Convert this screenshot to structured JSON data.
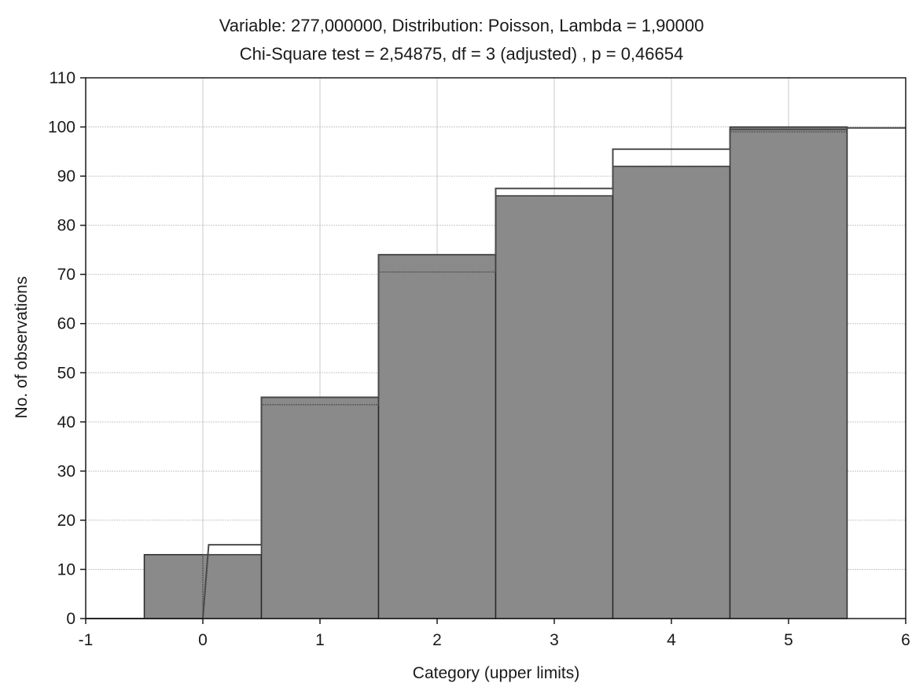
{
  "chart_data": {
    "type": "bar",
    "title_line1": "Variable: 277,000000, Distribution: Poisson, Lambda = 1,90000",
    "title_line2": "Chi-Square test = 2,54875, df = 3 (adjusted) , p = 0,46654",
    "xlabel": "Category (upper limits)",
    "ylabel": "No. of observations",
    "xlim": [
      -1,
      6
    ],
    "ylim": [
      0,
      110
    ],
    "x_ticks": [
      -1,
      0,
      1,
      2,
      3,
      4,
      5,
      6
    ],
    "y_ticks": [
      0,
      10,
      20,
      30,
      40,
      50,
      60,
      70,
      80,
      90,
      100,
      110
    ],
    "grid": true,
    "observed": {
      "categories": [
        0,
        1,
        2,
        3,
        4,
        5
      ],
      "values": [
        13,
        45,
        74,
        86,
        92,
        100
      ]
    },
    "expected_upper": {
      "x": [
        -1,
        0,
        0.05,
        0.5,
        0.5,
        1.5,
        1.5,
        2.5,
        2.5,
        3.5,
        3.5,
        4.5,
        4.5,
        5.5,
        5.5,
        6
      ],
      "y": [
        0,
        0,
        15,
        15,
        45,
        45,
        74,
        74,
        87.5,
        87.5,
        95.5,
        95.5,
        99.5,
        99.5,
        99.8,
        99.8
      ]
    },
    "expected_lower": {
      "x": [
        0,
        0,
        0.5,
        0.5,
        1.5,
        1.5,
        2.5,
        2.5,
        3.5,
        3.5,
        4.5,
        4.5,
        5.5
      ],
      "y": [
        0,
        13,
        13,
        43.5,
        43.5,
        70.5,
        70.5,
        86,
        86,
        92,
        92,
        99,
        99
      ]
    },
    "colors": {
      "bar_fill": "#8a8a8a",
      "bar_stroke": "#2a2a2a",
      "grid": "#c8c8c8",
      "line": "#4a4a4a",
      "text": "#1a1a1a"
    }
  }
}
